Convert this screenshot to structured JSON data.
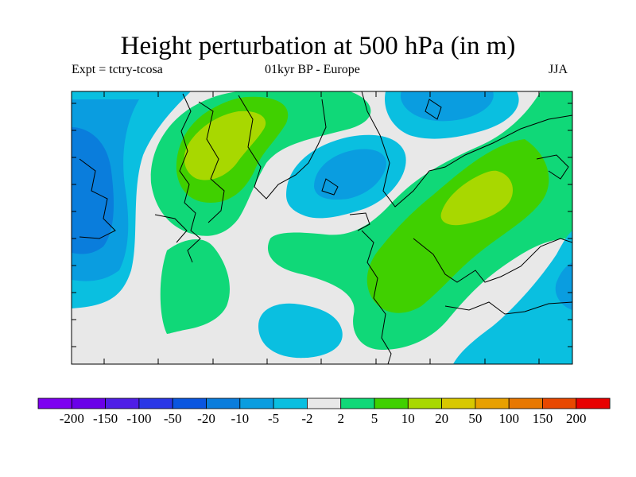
{
  "title": "Height perturbation at 500 hPa (in m)",
  "subtitle_left": "Expt = tctry-tcosa",
  "subtitle_center": "01kyr BP - Europe",
  "subtitle_right": "JJA",
  "legend": {
    "colors": [
      "#7d00f0",
      "#6a00e8",
      "#4f1ee6",
      "#2a37e6",
      "#0a56e0",
      "#0a7ddc",
      "#0a9de0",
      "#0abfe0",
      "#e8e8e8",
      "#10d878",
      "#40d000",
      "#a8d800",
      "#d8c800",
      "#e8a000",
      "#e87800",
      "#e84800",
      "#e80000"
    ],
    "labels": [
      "-200",
      "-150",
      "-100",
      "-50",
      "-20",
      "-10",
      "-5",
      "-2",
      "2",
      "5",
      "10",
      "20",
      "50",
      "100",
      "150",
      "200"
    ]
  },
  "map": {
    "background": "#e8e8e8",
    "colors": {
      "neg2_5": "#0abfe0",
      "neg5_10": "#0a9de0",
      "neg10_20": "#0a7ddc",
      "pos2_5": "#10d878",
      "pos5_10": "#40d000",
      "pos10_20": "#a8d800"
    }
  }
}
